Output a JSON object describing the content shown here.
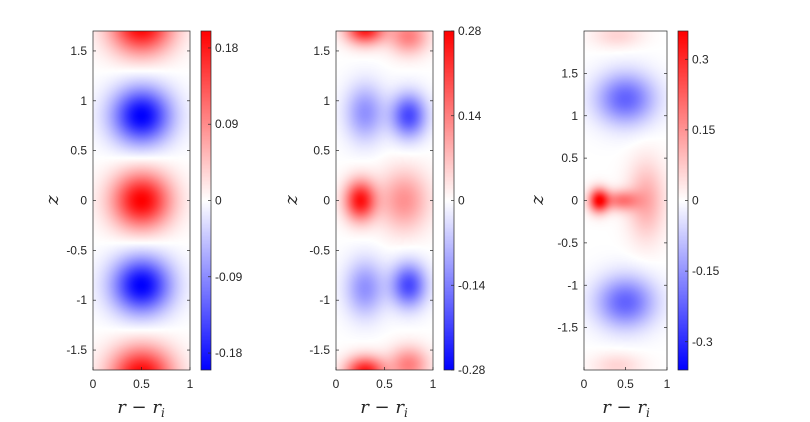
{
  "chart_data": [
    {
      "type": "heatmap",
      "title": "",
      "xlabel": "r − r",
      "xlabel_sub": "i",
      "ylabel": "z",
      "xlim": [
        0,
        1
      ],
      "ylim": [
        -1.7,
        1.7
      ],
      "x_ticks": [
        0,
        0.5,
        1
      ],
      "x_tick_labels": [
        "0",
        "0.5",
        "1"
      ],
      "y_ticks": [
        -1.5,
        -1,
        -0.5,
        0,
        0.5,
        1,
        1.5
      ],
      "y_tick_labels": [
        "-1.5",
        "-1",
        "-0.5",
        "0",
        "0.5",
        "1",
        "1.5"
      ],
      "colormap": "blue-white-red",
      "colors": {
        "negative": "#0000ff",
        "zero": "#ffffff",
        "positive": "#ff0000"
      },
      "clim": [
        -0.2,
        0.2
      ],
      "colorbar_ticks": [
        0.18,
        0.09,
        0,
        -0.09,
        -0.18
      ],
      "colorbar_tick_labels": [
        "0.18",
        "0.09",
        "0",
        "-0.09",
        "-0.18"
      ],
      "field": {
        "blobs": [
          {
            "r": 0.5,
            "z": 1.75,
            "value": 0.2,
            "sr": 0.32,
            "sz": 0.28
          },
          {
            "r": 0.5,
            "z": 0.85,
            "value": -0.2,
            "sr": 0.3,
            "sz": 0.28
          },
          {
            "r": 0.5,
            "z": 0.0,
            "value": 0.2,
            "sr": 0.3,
            "sz": 0.28
          },
          {
            "r": 0.5,
            "z": -0.85,
            "value": -0.2,
            "sr": 0.3,
            "sz": 0.28
          },
          {
            "r": 0.5,
            "z": -1.75,
            "value": 0.2,
            "sr": 0.32,
            "sz": 0.28
          }
        ]
      }
    },
    {
      "type": "heatmap",
      "title": "",
      "xlabel": "r − r",
      "xlabel_sub": "i",
      "ylabel": "z",
      "xlim": [
        0,
        1
      ],
      "ylim": [
        -1.7,
        1.7
      ],
      "x_ticks": [
        0,
        0.5,
        1
      ],
      "x_tick_labels": [
        "0",
        "0.5",
        "1"
      ],
      "y_ticks": [
        -1.5,
        -1,
        -0.5,
        0,
        0.5,
        1,
        1.5
      ],
      "y_tick_labels": [
        "-1.5",
        "-1",
        "-0.5",
        "0",
        "0.5",
        "1",
        "1.5"
      ],
      "colormap": "blue-white-red",
      "colors": {
        "negative": "#0000ff",
        "zero": "#ffffff",
        "positive": "#ff0000"
      },
      "clim": [
        -0.28,
        0.28
      ],
      "colorbar_ticks": [
        0.28,
        0.14,
        0,
        -0.14,
        -0.28
      ],
      "colorbar_tick_labels": [
        "0.28",
        "0.14",
        "0",
        "-0.14",
        "-0.28"
      ],
      "field": {
        "blobs": [
          {
            "r": 0.3,
            "z": 1.72,
            "value": 0.26,
            "sr": 0.2,
            "sz": 0.15
          },
          {
            "r": 0.75,
            "z": 1.65,
            "value": 0.14,
            "sr": 0.2,
            "sz": 0.18
          },
          {
            "r": 0.3,
            "z": 0.88,
            "value": -0.12,
            "sr": 0.2,
            "sz": 0.28
          },
          {
            "r": 0.75,
            "z": 0.85,
            "value": -0.2,
            "sr": 0.18,
            "sz": 0.22
          },
          {
            "r": 0.25,
            "z": 0.0,
            "value": 0.26,
            "sr": 0.16,
            "sz": 0.2
          },
          {
            "r": 0.7,
            "z": 0.0,
            "value": 0.12,
            "sr": 0.25,
            "sz": 0.3
          },
          {
            "r": 0.3,
            "z": -0.88,
            "value": -0.12,
            "sr": 0.2,
            "sz": 0.28
          },
          {
            "r": 0.75,
            "z": -0.85,
            "value": -0.2,
            "sr": 0.18,
            "sz": 0.22
          },
          {
            "r": 0.3,
            "z": -1.72,
            "value": 0.26,
            "sr": 0.2,
            "sz": 0.15
          },
          {
            "r": 0.75,
            "z": -1.65,
            "value": 0.14,
            "sr": 0.2,
            "sz": 0.18
          }
        ]
      }
    },
    {
      "type": "heatmap",
      "title": "",
      "xlabel": "r − r",
      "xlabel_sub": "i",
      "ylabel": "z",
      "xlim": [
        0,
        1
      ],
      "ylim": [
        -2,
        2
      ],
      "x_ticks": [
        0,
        0.5,
        1
      ],
      "x_tick_labels": [
        "0",
        "0.5",
        "1"
      ],
      "y_ticks": [
        -1.5,
        -1,
        -0.5,
        0,
        0.5,
        1,
        1.5
      ],
      "y_tick_labels": [
        "-1.5",
        "-1",
        "-0.5",
        "0",
        "0.5",
        "1",
        "1.5"
      ],
      "colormap": "blue-white-red",
      "colors": {
        "negative": "#0000ff",
        "zero": "#ffffff",
        "positive": "#ff0000"
      },
      "clim": [
        -0.36,
        0.36
      ],
      "colorbar_ticks": [
        0.3,
        0.15,
        0,
        -0.15,
        -0.3
      ],
      "colorbar_tick_labels": [
        "0.3",
        "0.15",
        "0",
        "-0.15",
        "-0.3"
      ],
      "field": {
        "blobs": [
          {
            "r": 0.4,
            "z": 1.95,
            "value": 0.06,
            "sr": 0.3,
            "sz": 0.15
          },
          {
            "r": 0.5,
            "z": 1.2,
            "value": -0.22,
            "sr": 0.35,
            "sz": 0.3
          },
          {
            "r": 0.18,
            "z": 0.0,
            "value": 0.34,
            "sr": 0.12,
            "sz": 0.14
          },
          {
            "r": 0.45,
            "z": 0.0,
            "value": 0.18,
            "sr": 0.2,
            "sz": 0.12
          },
          {
            "r": 0.75,
            "z": 0.0,
            "value": 0.12,
            "sr": 0.22,
            "sz": 0.45
          },
          {
            "r": 0.5,
            "z": -1.2,
            "value": -0.22,
            "sr": 0.35,
            "sz": 0.3
          },
          {
            "r": 0.4,
            "z": -1.95,
            "value": 0.06,
            "sr": 0.3,
            "sz": 0.15
          }
        ]
      }
    }
  ]
}
